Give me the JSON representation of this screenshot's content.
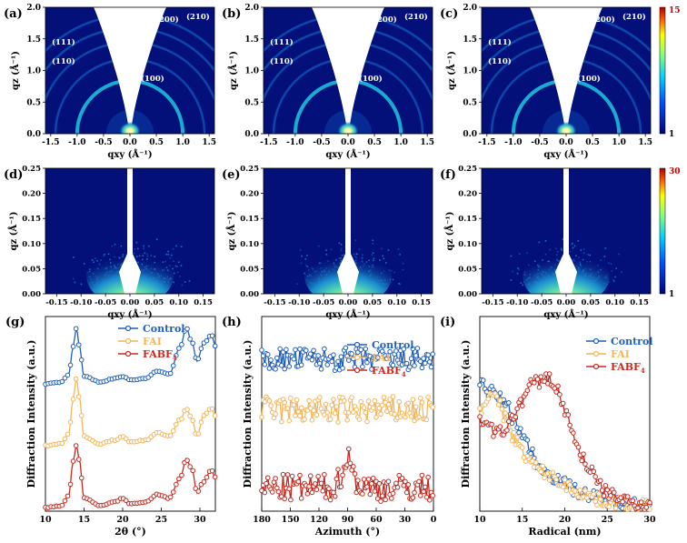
{
  "panels": {
    "a": "(a)",
    "b": "(b)",
    "c": "(c)",
    "d": "(d)",
    "e": "(e)",
    "f": "(f)",
    "g": "(g)",
    "h": "(h)",
    "i": "(i)"
  },
  "giwaxs_wide": {
    "xlabel": "qxy (Å⁻¹)",
    "ylabel": "qz (Å⁻¹)",
    "xticks": [
      "-1.5",
      "-1.0",
      "-0.5",
      "0.0",
      "0.5",
      "1.0",
      "1.5"
    ],
    "yticks": [
      "0.0",
      "0.5",
      "1.0",
      "1.5",
      "2.0"
    ],
    "rings": [
      "(100)",
      "(110)",
      "(111)",
      "(200)",
      "(210)"
    ],
    "colorbar": {
      "max": "15",
      "min": "1"
    }
  },
  "giwaxs_small": {
    "xlabel": "qxy (Å⁻¹)",
    "ylabel": "qz (Å⁻¹)",
    "xticks": [
      "-0.15",
      "-0.10",
      "-0.05",
      "0.00",
      "0.05",
      "0.10",
      "0.15"
    ],
    "yticks": [
      "0.00",
      "0.05",
      "0.10",
      "0.15",
      "0.20",
      "0.25"
    ],
    "colorbar": {
      "max": "30",
      "min": "1"
    }
  },
  "colors": {
    "control": "#1f5fbf",
    "fai": "#f5b55a",
    "fabf4": "#c8281e"
  },
  "legend": [
    "Control",
    "FAI",
    "FABF4"
  ],
  "chart_data": [
    {
      "type": "line",
      "panel": "g",
      "xlabel": "2θ (°)",
      "ylabel": "Diffraction Intensity (a.u.)",
      "xlim": [
        10,
        32
      ],
      "xticks": [
        "10",
        "15",
        "20",
        "25",
        "30"
      ],
      "series": [
        {
          "name": "Control",
          "offset": 0.66,
          "x": [
            10,
            12,
            13,
            13.6,
            14,
            14.4,
            15,
            17,
            19,
            20,
            21,
            23,
            24.5,
            26,
            27.5,
            28.2,
            29,
            29.6,
            30.5,
            31.5,
            32
          ],
          "y": [
            0.0,
            0.01,
            0.05,
            0.2,
            0.3,
            0.2,
            0.04,
            0.01,
            0.03,
            0.04,
            0.02,
            0.03,
            0.07,
            0.05,
            0.2,
            0.3,
            0.22,
            0.12,
            0.22,
            0.26,
            0.2
          ]
        },
        {
          "name": "FAI",
          "offset": 0.33,
          "x": [
            10,
            12,
            13,
            13.6,
            14,
            14.4,
            15,
            17,
            19,
            20,
            21,
            23,
            24.5,
            26,
            27.5,
            28.2,
            29,
            29.6,
            30.5,
            31.5,
            32
          ],
          "y": [
            0.0,
            0.01,
            0.06,
            0.25,
            0.36,
            0.25,
            0.05,
            0.01,
            0.03,
            0.05,
            0.02,
            0.03,
            0.07,
            0.05,
            0.14,
            0.2,
            0.14,
            0.05,
            0.16,
            0.2,
            0.16
          ]
        },
        {
          "name": "FABF4",
          "offset": 0.0,
          "x": [
            10,
            12,
            13,
            13.6,
            14,
            14.4,
            15,
            17,
            19,
            20,
            21,
            23,
            24.5,
            26,
            27.5,
            28.2,
            29,
            29.6,
            30.5,
            31.5,
            32
          ],
          "y": [
            0.0,
            0.01,
            0.06,
            0.25,
            0.33,
            0.25,
            0.05,
            0.01,
            0.03,
            0.05,
            0.02,
            0.03,
            0.07,
            0.05,
            0.16,
            0.26,
            0.2,
            0.08,
            0.14,
            0.2,
            0.16
          ]
        }
      ]
    },
    {
      "type": "line",
      "panel": "h",
      "xlabel": "Azimuth (°)",
      "ylabel": "Diffraction Intensity (a.u.)",
      "xlim": [
        180,
        0
      ],
      "xticks": [
        "180",
        "150",
        "120",
        "90",
        "60",
        "30",
        "0"
      ],
      "series": [
        {
          "name": "Control",
          "level": 0.78,
          "amplitude": 0.06
        },
        {
          "name": "FAI",
          "level": 0.52,
          "amplitude": 0.07
        },
        {
          "name": "FABF4",
          "level": 0.12,
          "amplitude": 0.07,
          "peak_center": 90,
          "peak_height": 0.15
        }
      ]
    },
    {
      "type": "line",
      "panel": "i",
      "xlabel": "Radical (nm)",
      "ylabel": "Diffraction Intensity (a.u.)",
      "xlim": [
        10,
        30
      ],
      "xticks": [
        "10",
        "15",
        "20",
        "25",
        "30"
      ],
      "series": [
        {
          "name": "Control",
          "x": [
            10,
            11,
            12,
            13,
            14,
            15,
            16,
            17,
            18,
            19,
            20,
            21,
            22,
            23,
            24,
            25,
            26,
            27,
            28,
            29,
            30
          ],
          "y": [
            0.7,
            0.65,
            0.62,
            0.58,
            0.5,
            0.42,
            0.32,
            0.24,
            0.2,
            0.18,
            0.15,
            0.12,
            0.1,
            0.08,
            0.07,
            0.06,
            0.05,
            0.05,
            0.04,
            0.03,
            0.03
          ]
        },
        {
          "name": "FAI",
          "x": [
            10,
            11,
            12,
            13,
            14,
            15,
            16,
            17,
            18,
            19,
            20,
            21,
            22,
            23,
            24,
            25,
            26,
            27,
            28,
            29,
            30
          ],
          "y": [
            0.55,
            0.62,
            0.6,
            0.5,
            0.4,
            0.32,
            0.26,
            0.22,
            0.2,
            0.17,
            0.14,
            0.12,
            0.1,
            0.08,
            0.06,
            0.05,
            0.05,
            0.04,
            0.03,
            0.03,
            0.02
          ]
        },
        {
          "name": "FABF4",
          "x": [
            10,
            11,
            12,
            13,
            14,
            15,
            16,
            17,
            18,
            19,
            20,
            21,
            22,
            23,
            24,
            25,
            26,
            27,
            28,
            29,
            30
          ],
          "y": [
            0.5,
            0.45,
            0.42,
            0.44,
            0.52,
            0.6,
            0.68,
            0.7,
            0.72,
            0.66,
            0.55,
            0.4,
            0.3,
            0.22,
            0.14,
            0.1,
            0.08,
            0.06,
            0.05,
            0.04,
            0.03
          ]
        }
      ]
    }
  ]
}
